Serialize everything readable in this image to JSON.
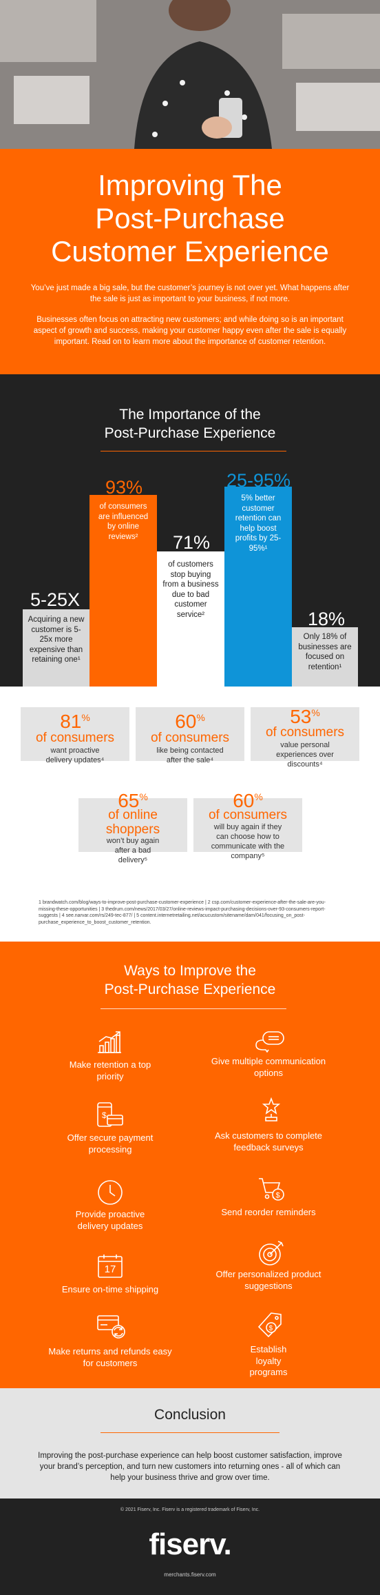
{
  "hero": {
    "title_lines": [
      "Improving The",
      "Post-Purchase",
      "Customer Experience"
    ],
    "intro_1": "You’ve just made a big sale, but the customer’s journey is not over yet. What happens after the sale is just as important to your business, if not more.",
    "intro_2": "Businesses often focus on attracting new customers; and while doing so is an important aspect of growth and success, making your customer happy even after the sale is equally important. Read on to learn more about the importance of customer retention."
  },
  "importance": {
    "title_lines": [
      "The Importance of the",
      "Post-Purchase Experience"
    ],
    "bars": [
      {
        "head": "5-25X",
        "text": "Acquiring a new customer is 5-25x more expensive than retaining one¹"
      },
      {
        "head": "93%",
        "text": "of consumers are influenced by online reviews²"
      },
      {
        "head": "71%",
        "text": "of customers stop buying from a business due to bad customer service²"
      },
      {
        "head": "25-95%",
        "text": "5% better customer retention can help boost profits by 25-95%¹"
      },
      {
        "head": "18%",
        "text": "Only 18% of businesses are focused on retention¹"
      }
    ]
  },
  "stats": [
    {
      "num": "81",
      "pct": "%",
      "mid": "of consumers",
      "text": "want proactive delivery updates⁴"
    },
    {
      "num": "60",
      "pct": "%",
      "mid": "of consumers",
      "text": "like being contacted after the sale⁴"
    },
    {
      "num": "53",
      "pct": "%",
      "mid": "of consumers",
      "text": "value personal experiences over discounts⁴"
    },
    {
      "num": "65",
      "pct": "%",
      "mid": "of online shoppers",
      "text": "won’t buy again after a bad delivery⁵"
    },
    {
      "num": "60",
      "pct": "%",
      "mid": "of consumers",
      "text": "will buy again if they can choose how to communicate with the company⁵"
    }
  ],
  "footnotes": "1 brandwatch.com/blog/ways-to-improve-post-purchase-customer-experience | 2 csp.com/customer-experience-after-the-sale-are-you-missing-these-opportunities | 3 thedrum.com/news/2017/03/27/online-reviews-impact-purchasing-decisions-over-93-consumers-report-suggests | 4 see.narvar.com/rs/249-tec-877/ | 5 content.internetretailing.net/acucustom/sitename/dam/041/focusing_on_post-purchase_experience_to_boost_customer_retention.",
  "ways": {
    "title_lines": [
      "Ways to Improve the",
      "Post-Purchase Experience"
    ],
    "items": [
      {
        "label": "Make retention a top priority",
        "icon": "growth-chart-icon"
      },
      {
        "label": "Give multiple communication options",
        "icon": "chat-bubbles-icon"
      },
      {
        "label": "Offer secure payment processing",
        "icon": "phone-card-payment-icon"
      },
      {
        "label": "Ask customers to complete feedback surveys",
        "icon": "star-trophy-icon"
      },
      {
        "label": "Provide proactive delivery updates",
        "icon": "clock-icon"
      },
      {
        "label": "Send reorder reminders",
        "icon": "cart-dollar-icon"
      },
      {
        "label": "Ensure on-time shipping",
        "icon": "calendar-icon",
        "day": "17"
      },
      {
        "label": "Offer personalized product suggestions",
        "icon": "target-arrow-icon"
      },
      {
        "label": "Make returns and refunds easy for customers",
        "icon": "card-refresh-icon"
      },
      {
        "label": "Establish loyalty programs",
        "icon": "tag-dollar-icon"
      }
    ]
  },
  "conclusion": {
    "title": "Conclusion",
    "text": "Improving the post-purchase experience can help boost customer satisfaction, improve your brand’s perception, and turn new customers into returning ones - all of which can help your business thrive and grow over time."
  },
  "footer": {
    "copyright": "© 2021 Fiserv, Inc. Fiserv is a registered trademark of Fiserv, Inc.",
    "logo": "fiserv.",
    "url": "merchants.fiserv.com"
  },
  "colors": {
    "accent": "#ff6600",
    "dark": "#222222",
    "blue": "#0f94d8",
    "card": "#e4e4e4"
  }
}
